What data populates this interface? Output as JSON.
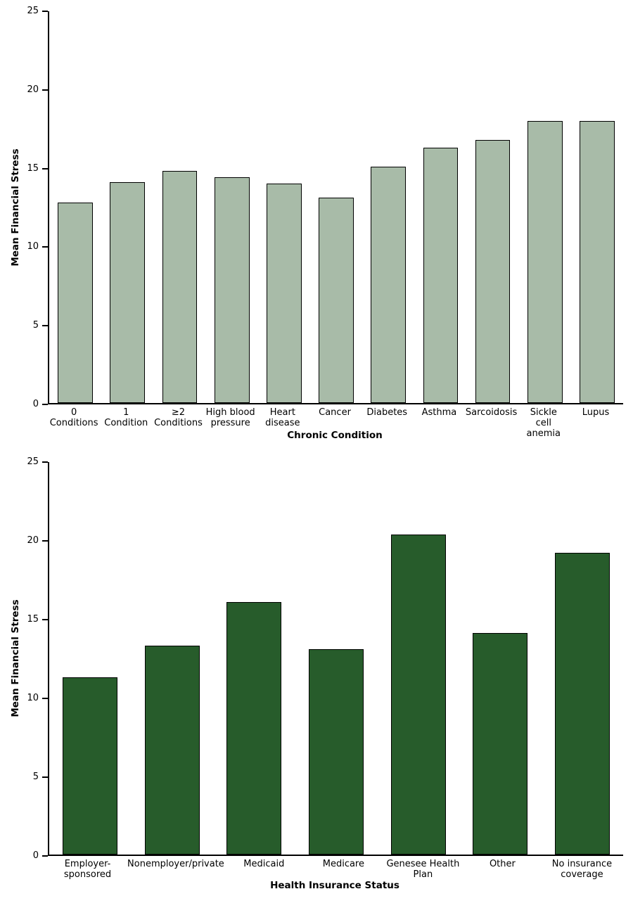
{
  "page": {
    "background_color": "#ffffff"
  },
  "chart_data": [
    {
      "type": "bar",
      "title": "",
      "ylabel": "Mean Financial Stress",
      "xlabel": "Chronic Condition",
      "ylim": [
        0,
        25
      ],
      "yticks": [
        0,
        5,
        10,
        15,
        20,
        25
      ],
      "grid": false,
      "legend": null,
      "bar_color": "#a8bba8",
      "bar_border_color": "#000000",
      "categories": [
        "0\nConditions",
        "1\nCondition",
        "≥2\nConditions",
        "High blood\npressure",
        "Heart\ndisease",
        "Cancer",
        "Diabetes",
        "Asthma",
        "Sarcoidosis",
        "Sickle\ncell anemia",
        "Lupus"
      ],
      "values": [
        12.8,
        14.1,
        14.8,
        14.4,
        14.0,
        13.1,
        15.1,
        16.3,
        16.8,
        18.0,
        18.0
      ]
    },
    {
      "type": "bar",
      "title": "",
      "ylabel": "Mean Financial Stress",
      "xlabel": "Health Insurance Status",
      "ylim": [
        0,
        25
      ],
      "yticks": [
        0,
        5,
        10,
        15,
        20,
        25
      ],
      "grid": false,
      "legend": null,
      "bar_color": "#275c2b",
      "bar_border_color": "#000000",
      "categories": [
        "Employer-\nsponsored",
        "Nonemployer/private",
        "Medicaid",
        "Medicare",
        "Genesee Health\nPlan",
        "Other",
        "No insurance\ncoverage"
      ],
      "values": [
        11.3,
        13.3,
        16.1,
        13.1,
        20.4,
        14.1,
        19.2
      ]
    }
  ]
}
